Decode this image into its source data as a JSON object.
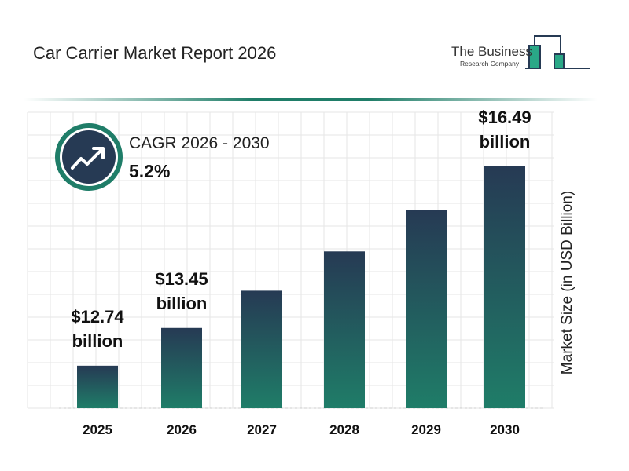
{
  "title": "Car Carrier Market Report 2026",
  "logo": {
    "line1": "The Business",
    "line2": "Research Company"
  },
  "cagr": {
    "label": "CAGR 2026 - 2030",
    "value": "5.2%",
    "icon": "trending-up-icon"
  },
  "colors": {
    "bar_top": "#263a54",
    "bar_bottom": "#1f7d68",
    "accent": "#1f7d68",
    "grid": "#e6e6e6"
  },
  "chart_data": {
    "type": "bar",
    "categories": [
      "2025",
      "2026",
      "2027",
      "2028",
      "2029",
      "2030"
    ],
    "values": [
      12.74,
      13.45,
      14.15,
      14.89,
      15.67,
      16.49
    ],
    "data_labels": [
      {
        "index": 0,
        "value": "$12.74",
        "unit": "billion"
      },
      {
        "index": 1,
        "value": "$13.45",
        "unit": "billion"
      },
      {
        "index": 5,
        "value": "$16.49",
        "unit": "billion"
      }
    ],
    "ylabel": "Market Size (in USD Billion)",
    "xlabel": "",
    "grid": true
  }
}
